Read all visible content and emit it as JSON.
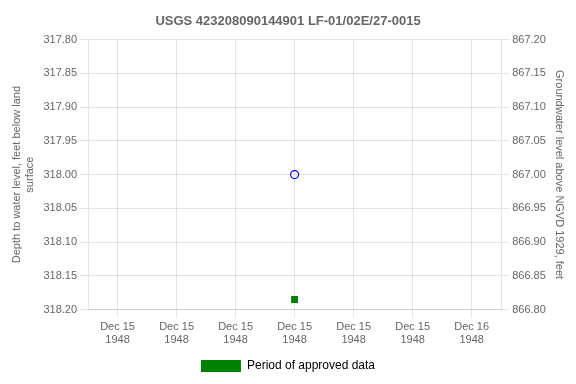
{
  "chart_data": {
    "type": "scatter",
    "title": "USGS 423208090144901 LF-01/02E/27-0015",
    "ylabel": "Depth to water level, feet below land\nsurface",
    "y2label": "Groundwater level above NGVD 1929, feet",
    "categories": [
      "Dec 15\n1948",
      "Dec 15\n1948",
      "Dec 15\n1948",
      "Dec 15\n1948",
      "Dec 15\n1948",
      "Dec 15\n1948",
      "Dec 16\n1948"
    ],
    "ylim": [
      318.2,
      317.8
    ],
    "yticks": [
      {
        "value": 317.8,
        "label": "317.80"
      },
      317.85,
      {
        "value": 317.9,
        "label": "317.90"
      },
      317.95,
      {
        "value": 318.0,
        "label": "318.00"
      },
      318.05,
      {
        "value": 318.1,
        "label": "318.10"
      },
      318.15,
      {
        "value": 318.2,
        "label": "318.20"
      }
    ],
    "y2lim": [
      866.8,
      867.2
    ],
    "y2ticks": [
      {
        "value": 867.2,
        "label": "867.20"
      },
      867.15,
      {
        "value": 867.1,
        "label": "867.10"
      },
      867.05,
      {
        "value": 867.0,
        "label": "867.00"
      },
      866.95,
      {
        "value": 866.9,
        "label": "866.90"
      },
      866.85,
      {
        "value": 866.8,
        "label": "866.80"
      }
    ],
    "series": [
      {
        "color": "#0000ff",
        "marker": "open_circle",
        "values": [
          null,
          null,
          null,
          318.0,
          null,
          null,
          null
        ]
      },
      {
        "name": "Period of approved data",
        "color": "#008000",
        "marker": "square",
        "values": [
          null,
          null,
          null,
          318.185,
          null,
          null,
          null
        ]
      }
    ],
    "grid": true,
    "legend": "bottom"
  }
}
